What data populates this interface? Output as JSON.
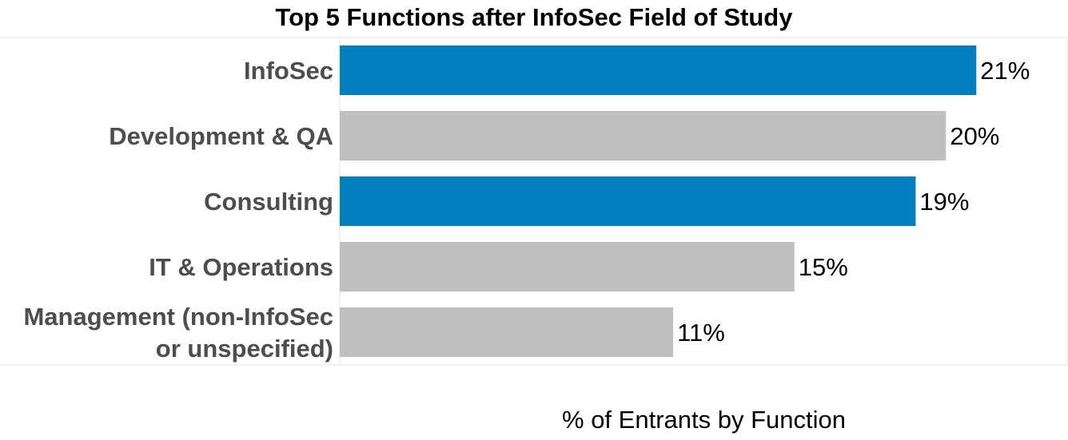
{
  "chart_data": {
    "type": "bar",
    "orientation": "horizontal",
    "title": "Top 5 Functions after InfoSec Field of Study",
    "xlabel": "% of Entrants by Function",
    "ylabel": "",
    "categories": [
      [
        "InfoSec"
      ],
      [
        "Development & QA"
      ],
      [
        "Consulting"
      ],
      [
        "IT & Operations"
      ],
      [
        "Management (non-InfoSec",
        "or unspecified)"
      ]
    ],
    "values": [
      21,
      20,
      19,
      15,
      11
    ],
    "value_labels": [
      "21%",
      "20%",
      "19%",
      "15%",
      "11%"
    ],
    "highlighted": [
      true,
      false,
      true,
      false,
      false
    ],
    "xlim": [
      0,
      24
    ],
    "grid": false,
    "legend": "none",
    "colors": {
      "highlight": "#0080c0",
      "default": "#bfbfbf",
      "frame": "#e0e0e0"
    }
  }
}
